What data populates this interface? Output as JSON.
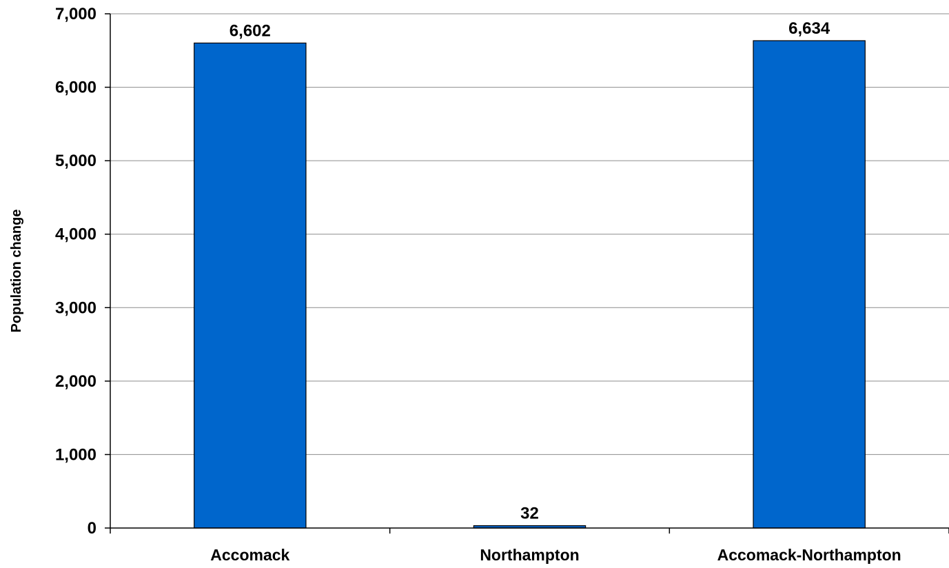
{
  "chart_data": {
    "type": "bar",
    "categories": [
      "Accomack",
      "Northampton",
      "Accomack-Northampton"
    ],
    "values": [
      6602,
      32,
      6634
    ],
    "data_labels": [
      "6,602",
      "32",
      "6,634"
    ],
    "ylabel": "Population change",
    "ylim": [
      0,
      7000
    ],
    "y_ticks": [
      0,
      1000,
      2000,
      3000,
      4000,
      5000,
      6000,
      7000
    ],
    "y_tick_labels": [
      "0",
      "1,000",
      "2,000",
      "3,000",
      "4,000",
      "5,000",
      "6,000",
      "7,000"
    ],
    "grid": true,
    "legend": "none",
    "bar_color": "#0066CC",
    "bar_outline_color": "#000000"
  }
}
